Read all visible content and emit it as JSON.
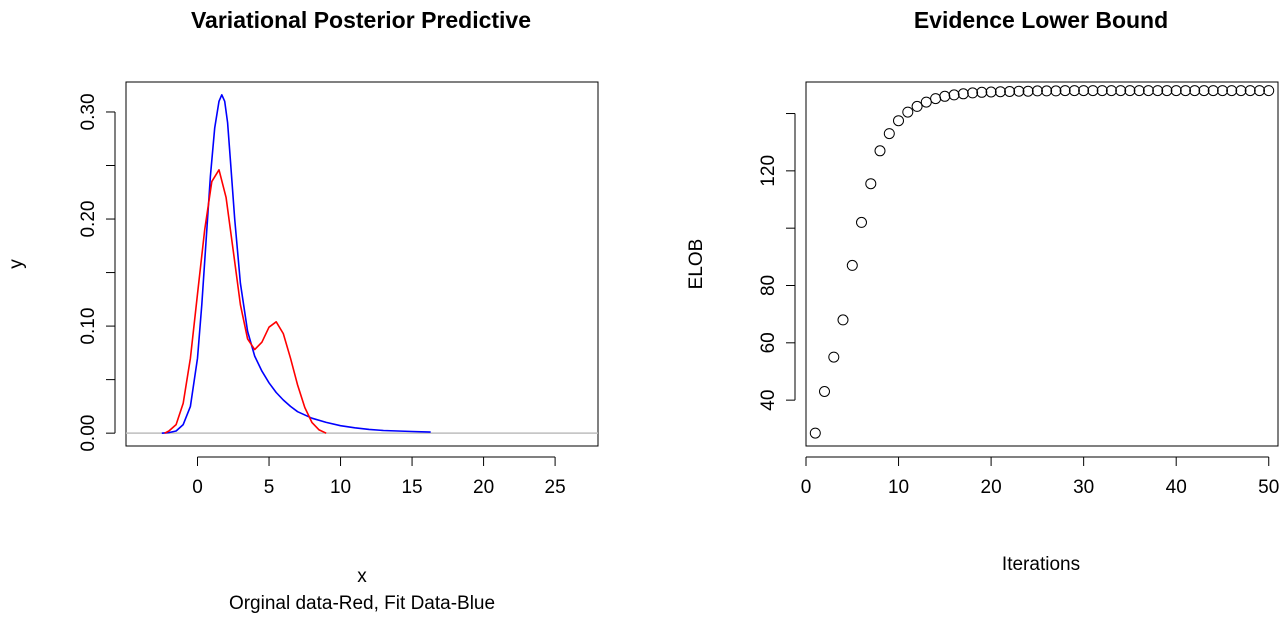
{
  "chart_data": [
    {
      "type": "line",
      "title": "Variational Posterior Predictive",
      "xlabel": "x",
      "ylabel": "y",
      "subtitle": "Orginal data-Red, Fit Data-Blue",
      "xlim": [
        -5,
        28
      ],
      "ylim": [
        -0.012,
        0.328
      ],
      "xticks": [
        0,
        5,
        10,
        15,
        20,
        25
      ],
      "xtick_labels": [
        "0",
        "5",
        "10",
        "15",
        "20",
        "25"
      ],
      "yticks": [
        0.0,
        0.05,
        0.1,
        0.15,
        0.2,
        0.25,
        0.3
      ],
      "ytick_labels": [
        "0.00",
        "",
        "0.10",
        "",
        "0.20",
        "",
        "0.30"
      ],
      "hline": {
        "y": 0,
        "color": "#bebebe"
      },
      "series": [
        {
          "color": "#0000ff",
          "x": [
            -2.5,
            -2.0,
            -1.5,
            -1.0,
            -0.5,
            0.0,
            0.3,
            0.6,
            0.9,
            1.2,
            1.5,
            1.7,
            1.9,
            2.1,
            2.3,
            2.6,
            3.0,
            3.5,
            4.0,
            4.5,
            5.0,
            5.5,
            6.0,
            6.5,
            7.0,
            8.0,
            9.0,
            10.0,
            11.0,
            12.0,
            13.0,
            14.0,
            15.0,
            16.3
          ],
          "y": [
            0.0,
            0.0005,
            0.002,
            0.008,
            0.025,
            0.07,
            0.12,
            0.18,
            0.24,
            0.285,
            0.31,
            0.316,
            0.31,
            0.29,
            0.255,
            0.2,
            0.14,
            0.095,
            0.072,
            0.058,
            0.047,
            0.038,
            0.031,
            0.025,
            0.02,
            0.014,
            0.01,
            0.007,
            0.005,
            0.0035,
            0.0025,
            0.002,
            0.0015,
            0.001
          ]
        },
        {
          "color": "#ff0000",
          "x": [
            -2.3,
            -2.0,
            -1.5,
            -1.0,
            -0.5,
            0.0,
            0.5,
            1.0,
            1.5,
            2.0,
            2.5,
            3.0,
            3.5,
            4.0,
            4.5,
            5.0,
            5.5,
            6.0,
            6.5,
            7.0,
            7.5,
            8.0,
            8.5,
            9.0
          ],
          "y": [
            0.0,
            0.002,
            0.008,
            0.028,
            0.07,
            0.13,
            0.19,
            0.235,
            0.246,
            0.22,
            0.17,
            0.12,
            0.088,
            0.078,
            0.085,
            0.099,
            0.104,
            0.093,
            0.07,
            0.045,
            0.024,
            0.01,
            0.003,
            0.0
          ]
        }
      ]
    },
    {
      "type": "scatter",
      "title": "Evidence Lower Bound",
      "xlabel": "Iterations",
      "ylabel": "ELOB",
      "xlim": [
        0,
        51
      ],
      "ylim": [
        24,
        151
      ],
      "xticks": [
        0,
        10,
        20,
        30,
        40,
        50
      ],
      "xtick_labels": [
        "0",
        "10",
        "20",
        "30",
        "40",
        "50"
      ],
      "yticks": [
        40,
        60,
        80,
        100,
        120,
        140
      ],
      "ytick_labels": [
        "40",
        "60",
        "80",
        "",
        "120",
        ""
      ],
      "x": [
        1,
        2,
        3,
        4,
        5,
        6,
        7,
        8,
        9,
        10,
        11,
        12,
        13,
        14,
        15,
        16,
        17,
        18,
        19,
        20,
        21,
        22,
        23,
        24,
        25,
        26,
        27,
        28,
        29,
        30,
        31,
        32,
        33,
        34,
        35,
        36,
        37,
        38,
        39,
        40,
        41,
        42,
        43,
        44,
        45,
        46,
        47,
        48,
        49,
        50
      ],
      "y": [
        28.5,
        43,
        55,
        68,
        87,
        102,
        115.5,
        127,
        133,
        137.5,
        140.5,
        142.5,
        144,
        145.2,
        146,
        146.5,
        146.9,
        147.2,
        147.4,
        147.5,
        147.6,
        147.7,
        147.8,
        147.8,
        147.9,
        147.9,
        147.9,
        148,
        148,
        148,
        148,
        148,
        148,
        148,
        148,
        148,
        148,
        148,
        148,
        148,
        148,
        148,
        148,
        148,
        148,
        148,
        148,
        148,
        148,
        148
      ]
    }
  ]
}
